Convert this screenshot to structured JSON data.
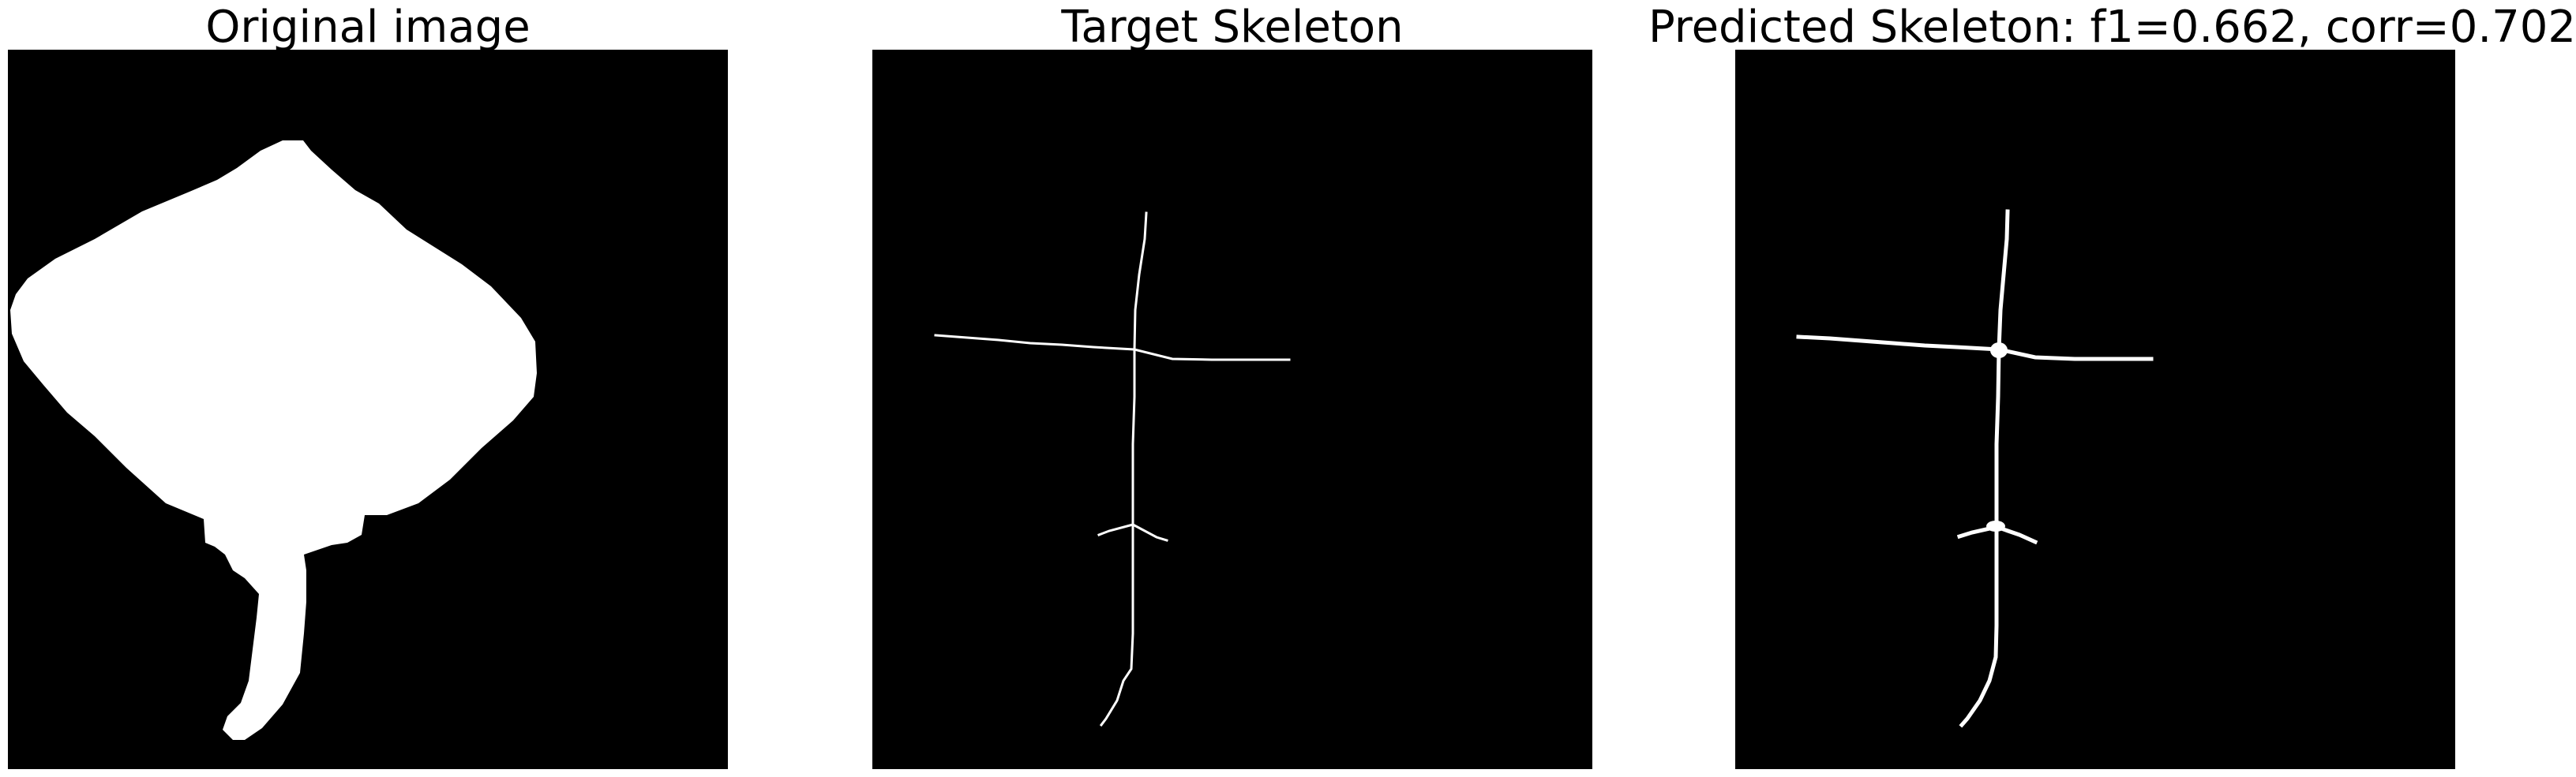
{
  "panels": [
    {
      "title": "Original image"
    },
    {
      "title": "Target Skeleton"
    },
    {
      "title": "Predicted Skeleton: f1=0.662, corr=0.702"
    }
  ],
  "colors": {
    "background": "#000000",
    "foreground": "#ffffff",
    "page": "#ffffff"
  }
}
